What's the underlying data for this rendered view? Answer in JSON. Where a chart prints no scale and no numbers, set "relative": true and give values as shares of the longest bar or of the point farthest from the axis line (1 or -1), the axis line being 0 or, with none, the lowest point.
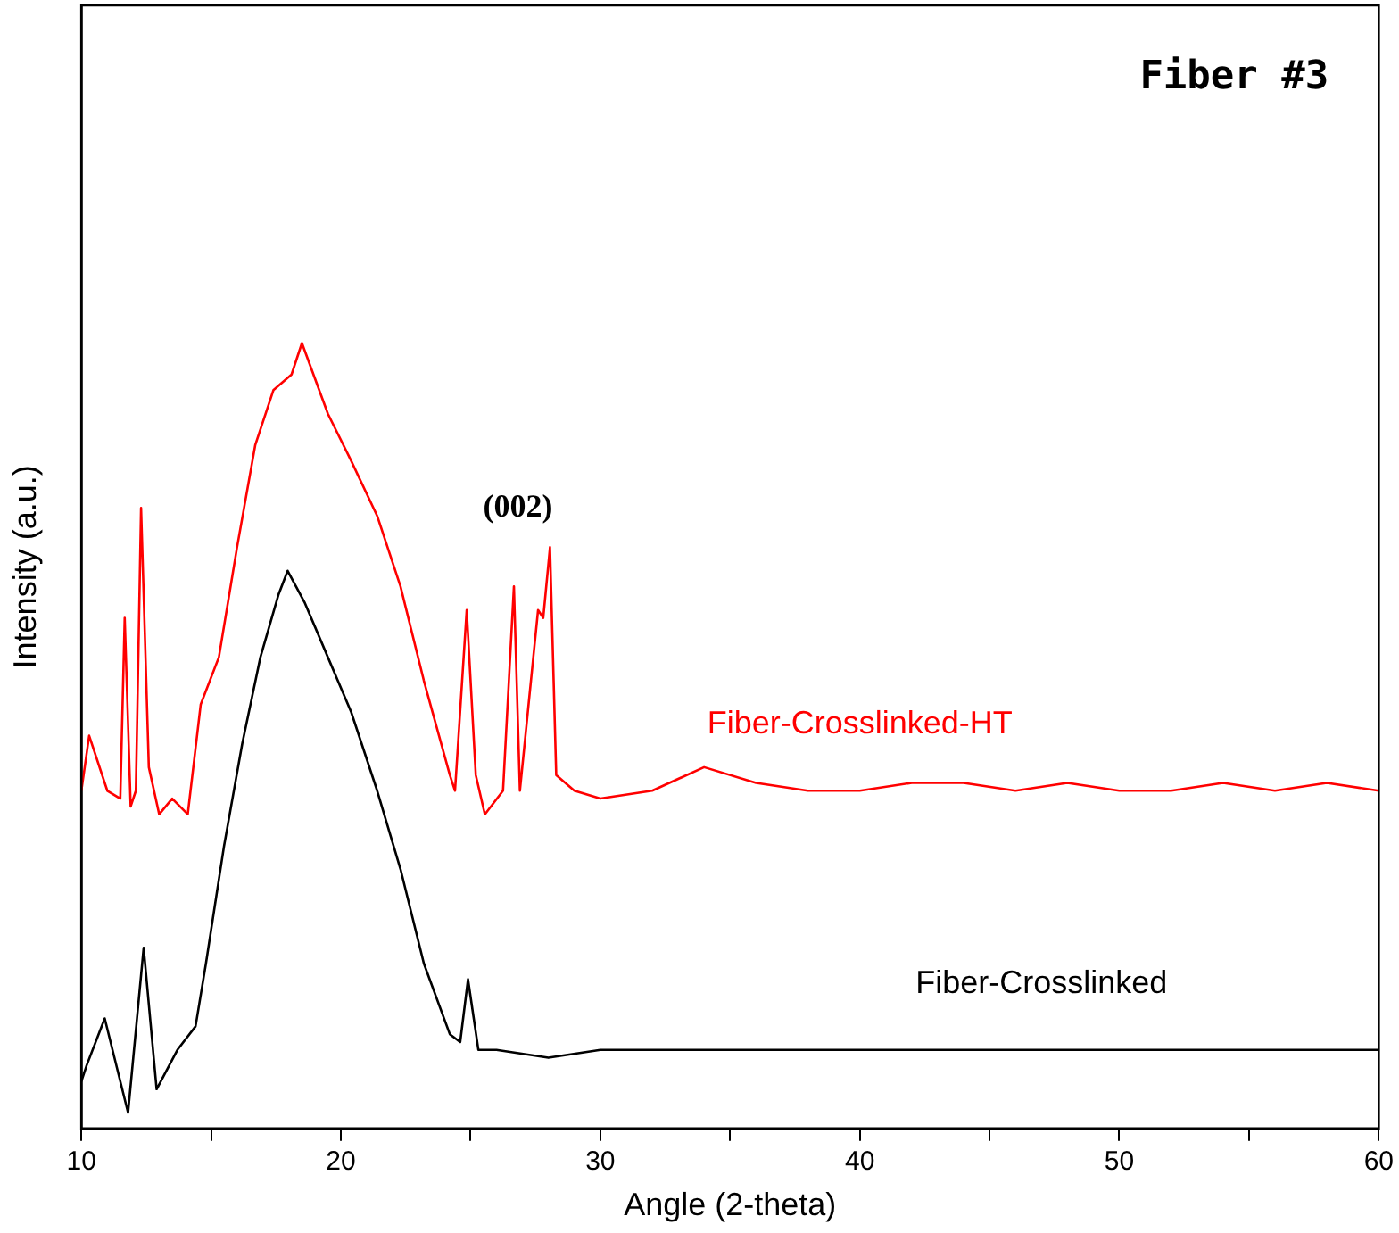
{
  "chart_data": {
    "type": "line",
    "title": "Fiber #3",
    "xlabel": "Angle (2-theta)",
    "ylabel": "Intensity (a.u.)",
    "relative": true,
    "xlim": [
      10,
      60
    ],
    "xticks": [
      10,
      {
        "value": 15,
        "label": null
      },
      20,
      {
        "value": 25,
        "label": null
      },
      30,
      {
        "value": 35,
        "label": null
      },
      40,
      {
        "value": 45,
        "label": null
      },
      50,
      {
        "value": 55,
        "label": null
      },
      60
    ],
    "grid": false,
    "legend": false,
    "marker": "none",
    "line_style": "solid",
    "annotations": [
      {
        "text": "(002)",
        "x": 28.06,
        "y": 0.74
      }
    ],
    "series": [
      {
        "name": "Fiber-Crosslinked-HT",
        "color": "#ff0000",
        "x": [
          10,
          10.3,
          11,
          11.5,
          11.67,
          11.9,
          12.1,
          12.3,
          12.6,
          13,
          13.5,
          14.1,
          14.6,
          15.3,
          16,
          16.7,
          17.4,
          18.1,
          18.5,
          19.5,
          20.4,
          21.4,
          22.3,
          23.2,
          24.2,
          24.4,
          24.85,
          25.2,
          25.55,
          26.25,
          26.67,
          26.9,
          27.6,
          27.8,
          28.06,
          28.3,
          29,
          30,
          32,
          34,
          36,
          38,
          40,
          42,
          44,
          46,
          48,
          50,
          52,
          54,
          56,
          58,
          60
        ],
        "values": [
          0.43,
          0.5,
          0.43,
          0.42,
          0.65,
          0.41,
          0.43,
          0.79,
          0.46,
          0.4,
          0.42,
          0.4,
          0.54,
          0.6,
          0.74,
          0.87,
          0.94,
          0.96,
          1,
          0.91,
          0.85,
          0.78,
          0.69,
          0.57,
          0.45,
          0.43,
          0.66,
          0.45,
          0.4,
          0.43,
          0.69,
          0.43,
          0.66,
          0.65,
          0.74,
          0.45,
          0.43,
          0.42,
          0.43,
          0.46,
          0.44,
          0.43,
          0.43,
          0.44,
          0.44,
          0.43,
          0.44,
          0.43,
          0.43,
          0.44,
          0.43,
          0.44,
          0.43
        ]
      },
      {
        "name": "Fiber-Crosslinked",
        "color": "#000000",
        "x": [
          10,
          10.2,
          10.9,
          11.8,
          12.4,
          12.9,
          13.7,
          14.4,
          14.8,
          15.5,
          16.2,
          16.9,
          17.6,
          17.95,
          18.6,
          19.5,
          20.4,
          21.4,
          22.3,
          23.2,
          24.2,
          24.6,
          24.9,
          25.3,
          26,
          28,
          30,
          35,
          40,
          45,
          50,
          55,
          60
        ],
        "values": [
          0.06,
          0.08,
          0.14,
          0.02,
          0.23,
          0.05,
          0.1,
          0.13,
          0.21,
          0.36,
          0.49,
          0.6,
          0.68,
          0.71,
          0.67,
          0.6,
          0.53,
          0.43,
          0.33,
          0.21,
          0.12,
          0.11,
          0.19,
          0.1,
          0.1,
          0.09,
          0.1,
          0.1,
          0.1,
          0.1,
          0.1,
          0.1,
          0.1
        ]
      }
    ]
  }
}
